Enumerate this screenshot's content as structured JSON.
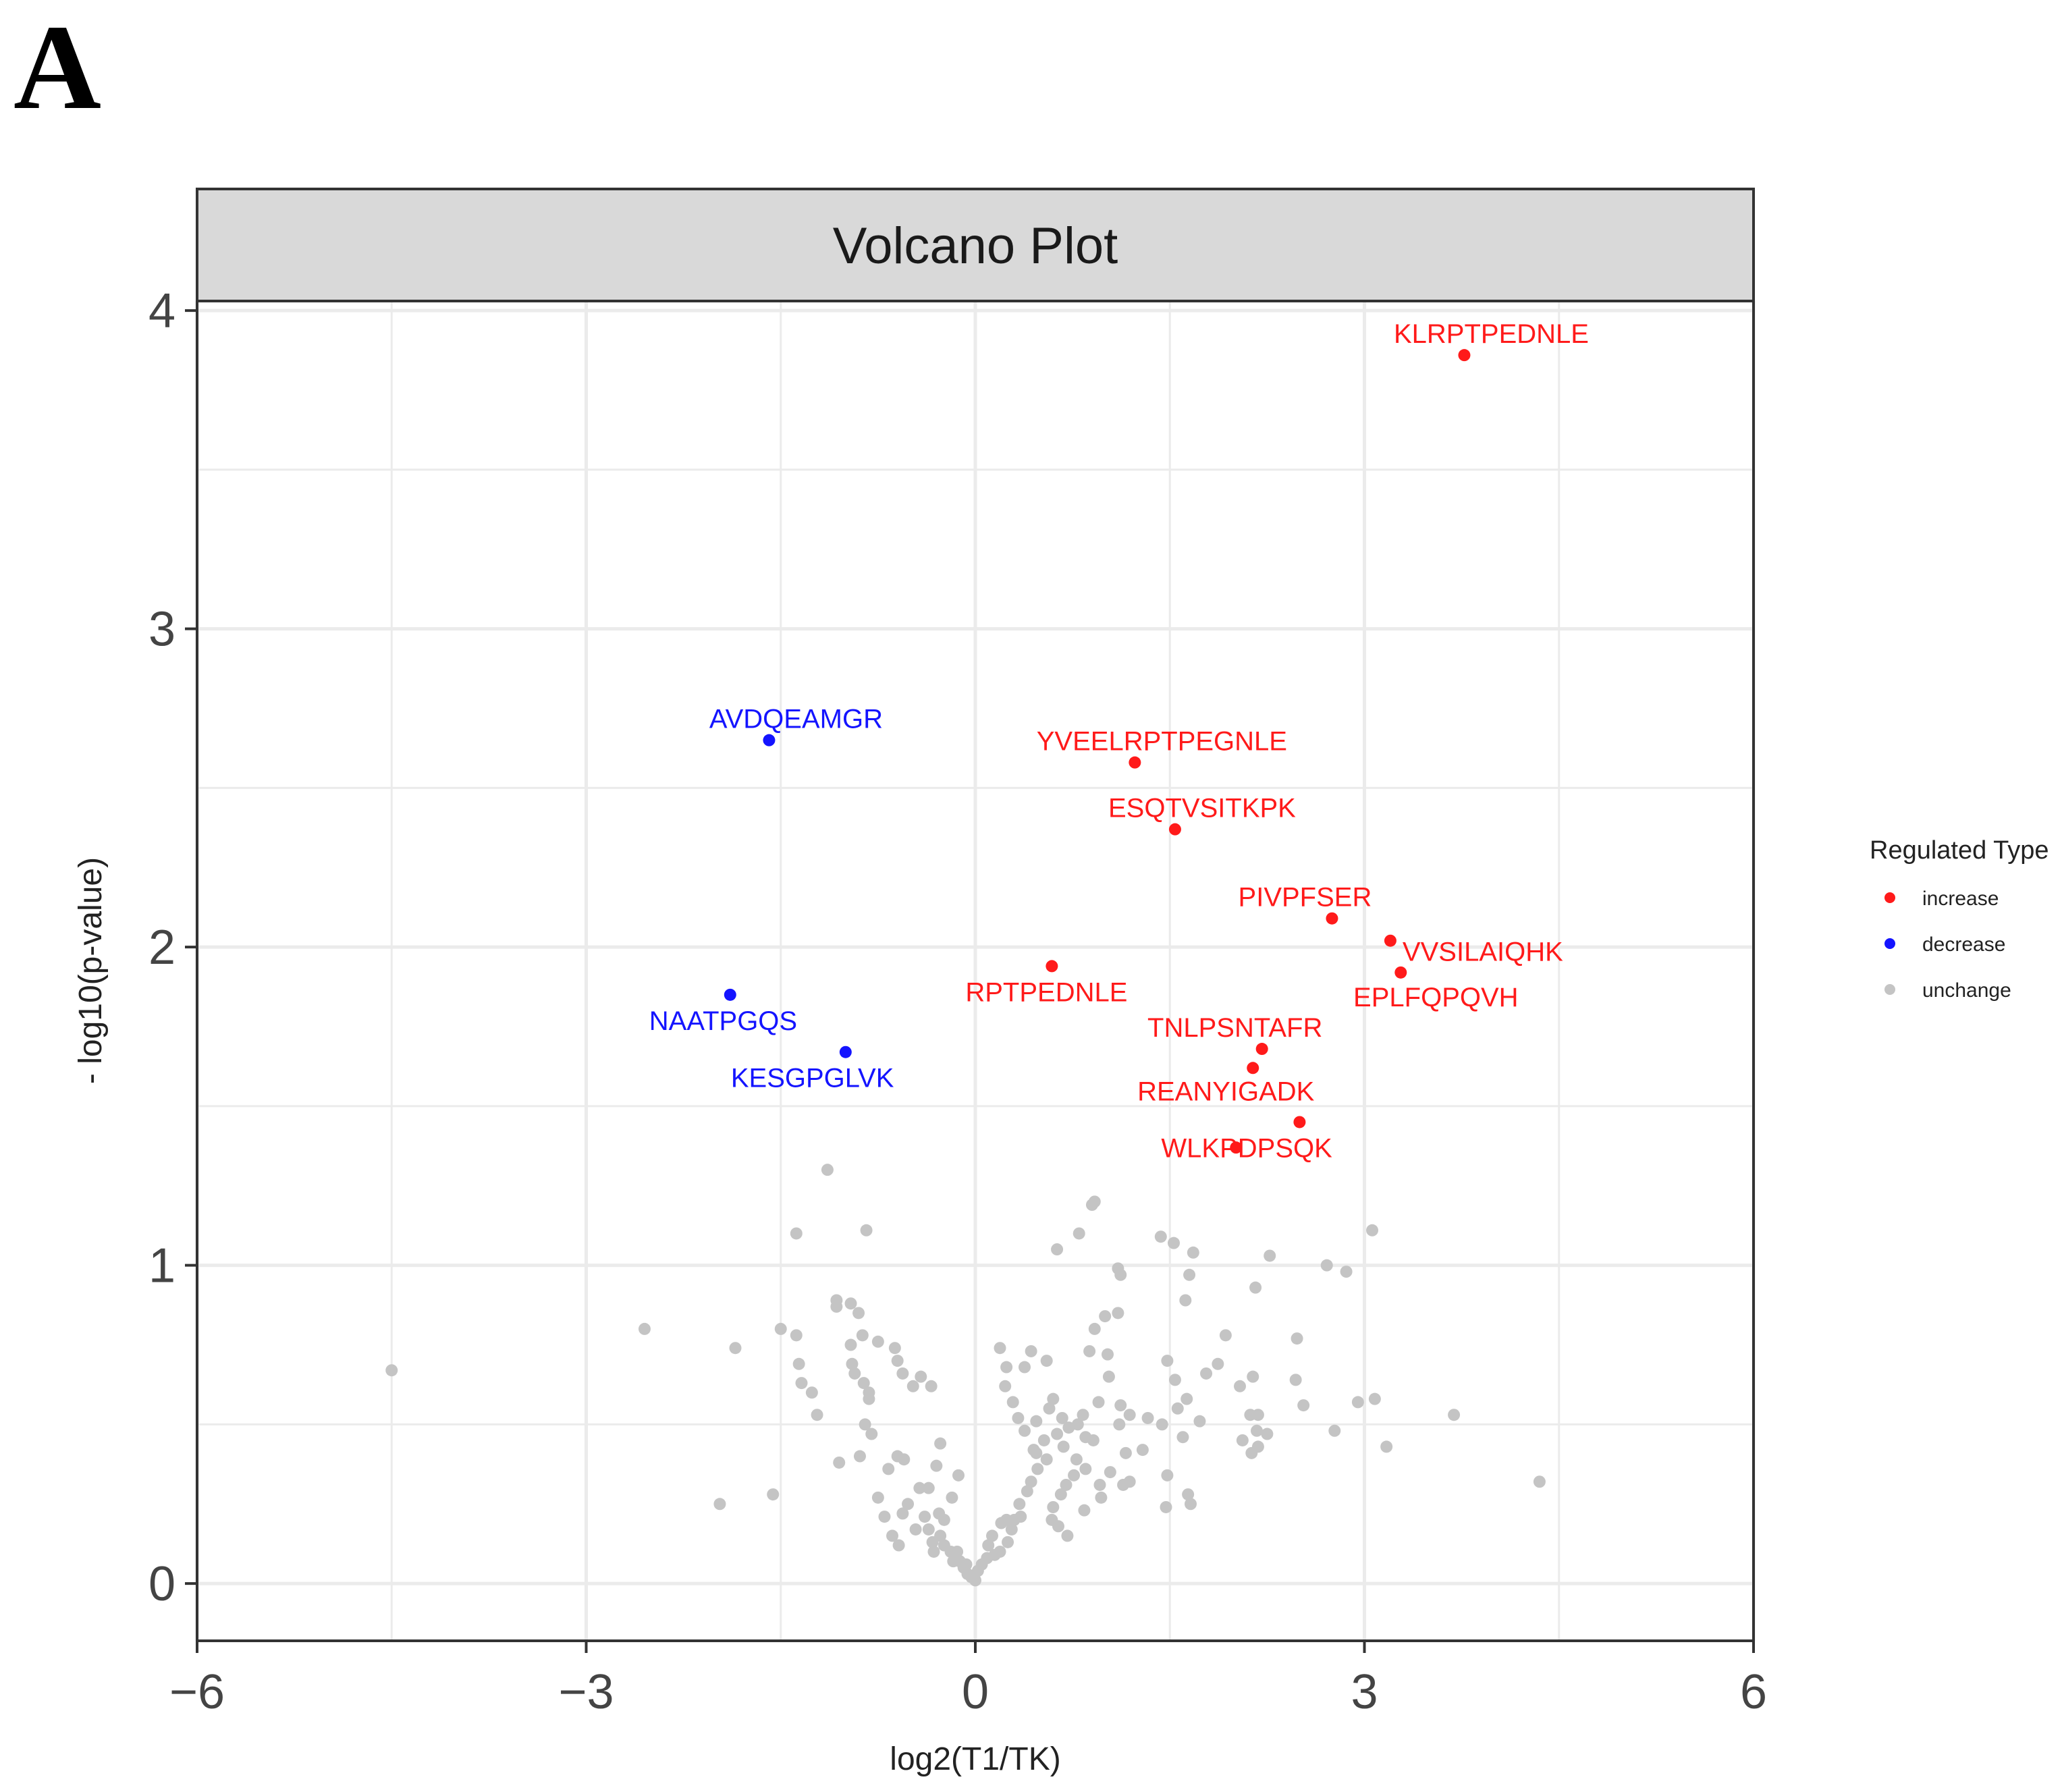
{
  "panel_label": "A",
  "colors": {
    "increase": "#ff1a1a",
    "decrease": "#1414ff",
    "unchange": "#c4c4c4",
    "strip_fill": "#d9d9d9",
    "grid": "#ebebeb",
    "axis": "#333333",
    "text": "#222222"
  },
  "legend": {
    "title": "Regulated Type",
    "items": [
      {
        "label": "increase",
        "color": "#ff1a1a"
      },
      {
        "label": "decrease",
        "color": "#1414ff"
      },
      {
        "label": "unchange",
        "color": "#c4c4c4"
      }
    ]
  },
  "chart_data": {
    "type": "scatter",
    "title": "Volcano Plot",
    "xlabel": "log2(T1/TK)",
    "ylabel": "- log10(p-value)",
    "xlim": [
      -6,
      6
    ],
    "ylim": [
      -0.18,
      4.03
    ],
    "x_ticks": [
      -6,
      -3,
      0,
      3,
      6
    ],
    "x_tick_labels": [
      "−6",
      "−3",
      "0",
      "3",
      "6"
    ],
    "y_ticks": [
      0,
      1,
      2,
      3,
      4
    ],
    "y_tick_labels": [
      "0",
      "1",
      "2",
      "3",
      "4"
    ],
    "grid": true,
    "legend_position": "right",
    "labeled_points": [
      {
        "label": "KLRPTPEDNLE",
        "x": 3.77,
        "y": 3.86,
        "type": "increase"
      },
      {
        "label": "YVEELRPTPEGNLE",
        "x": 1.23,
        "y": 2.58,
        "type": "increase"
      },
      {
        "label": "ESQTVSITKPK",
        "x": 1.54,
        "y": 2.37,
        "type": "increase"
      },
      {
        "label": "PIVPFSER",
        "x": 2.75,
        "y": 2.09,
        "type": "increase"
      },
      {
        "label": "VVSILAIQHK",
        "x": 3.2,
        "y": 2.02,
        "type": "increase"
      },
      {
        "label": "EPLFQPQVH",
        "x": 3.28,
        "y": 1.92,
        "type": "increase"
      },
      {
        "label": "RPTPEDNLE",
        "x": 0.59,
        "y": 1.94,
        "type": "increase"
      },
      {
        "label": "TNLPSNTAFR",
        "x": 2.21,
        "y": 1.68,
        "type": "increase"
      },
      {
        "label": "REANYIGADK",
        "x": 2.14,
        "y": 1.62,
        "type": "increase"
      },
      {
        "label": "WLKPDPSQK",
        "x": 2.5,
        "y": 1.45,
        "type": "increase"
      },
      {
        "label": "",
        "x": 2.01,
        "y": 1.37,
        "type": "increase"
      },
      {
        "label": "AVDQEAMGR",
        "x": -1.59,
        "y": 2.65,
        "type": "decrease"
      },
      {
        "label": "NAATPGQS",
        "x": -1.89,
        "y": 1.85,
        "type": "decrease"
      },
      {
        "label": "KESGPGLVK",
        "x": -1.0,
        "y": 1.67,
        "type": "decrease"
      }
    ],
    "unchange_points": [
      [
        -4.5,
        0.67
      ],
      [
        -2.55,
        0.8
      ],
      [
        -1.97,
        0.25
      ],
      [
        -1.85,
        0.74
      ],
      [
        -1.56,
        0.28
      ],
      [
        -1.14,
        1.3
      ],
      [
        -1.38,
        1.1
      ],
      [
        -0.84,
        1.11
      ],
      [
        -1.5,
        0.8
      ],
      [
        -1.38,
        0.78
      ],
      [
        -1.36,
        0.69
      ],
      [
        -1.34,
        0.63
      ],
      [
        -1.26,
        0.6
      ],
      [
        -1.22,
        0.53
      ],
      [
        -1.07,
        0.89
      ],
      [
        -1.07,
        0.87
      ],
      [
        -0.96,
        0.88
      ],
      [
        -0.9,
        0.85
      ],
      [
        -0.87,
        0.78
      ],
      [
        -0.96,
        0.75
      ],
      [
        -0.95,
        0.69
      ],
      [
        -0.93,
        0.66
      ],
      [
        -0.86,
        0.63
      ],
      [
        -0.82,
        0.6
      ],
      [
        -0.82,
        0.58
      ],
      [
        -0.75,
        0.76
      ],
      [
        -0.62,
        0.74
      ],
      [
        -0.6,
        0.7
      ],
      [
        -0.56,
        0.66
      ],
      [
        -0.48,
        0.62
      ],
      [
        -0.34,
        0.62
      ],
      [
        -0.42,
        0.65
      ],
      [
        -0.85,
        0.5
      ],
      [
        -0.8,
        0.47
      ],
      [
        -0.89,
        0.4
      ],
      [
        -1.05,
        0.38
      ],
      [
        -0.67,
        0.36
      ],
      [
        -0.6,
        0.4
      ],
      [
        -0.55,
        0.39
      ],
      [
        -0.27,
        0.44
      ],
      [
        -0.3,
        0.37
      ],
      [
        -0.43,
        0.3
      ],
      [
        -0.56,
        0.22
      ],
      [
        -0.52,
        0.25
      ],
      [
        -0.28,
        0.22
      ],
      [
        -0.24,
        0.2
      ],
      [
        -0.18,
        0.27
      ],
      [
        -0.13,
        0.34
      ],
      [
        -0.75,
        0.27
      ],
      [
        -0.7,
        0.21
      ],
      [
        -0.64,
        0.15
      ],
      [
        -0.59,
        0.12
      ],
      [
        -0.36,
        0.17
      ],
      [
        -0.33,
        0.13
      ],
      [
        -0.27,
        0.15
      ],
      [
        -0.24,
        0.12
      ],
      [
        -0.19,
        0.1
      ],
      [
        -0.14,
        0.1
      ],
      [
        -0.12,
        0.07
      ],
      [
        -0.07,
        0.06
      ],
      [
        -0.06,
        0.03
      ],
      [
        -0.03,
        0.02
      ],
      [
        -0.09,
        0.05
      ],
      [
        -0.17,
        0.07
      ],
      [
        -0.32,
        0.1
      ],
      [
        -0.46,
        0.17
      ],
      [
        -0.36,
        0.3
      ],
      [
        -0.39,
        0.21
      ],
      [
        0.0,
        0.01
      ],
      [
        0.02,
        0.04
      ],
      [
        0.05,
        0.06
      ],
      [
        0.09,
        0.08
      ],
      [
        0.15,
        0.09
      ],
      [
        0.1,
        0.12
      ],
      [
        0.13,
        0.15
      ],
      [
        0.19,
        0.1
      ],
      [
        0.25,
        0.13
      ],
      [
        0.28,
        0.17
      ],
      [
        0.2,
        0.19
      ],
      [
        0.24,
        0.2
      ],
      [
        0.3,
        0.2
      ],
      [
        0.35,
        0.21
      ],
      [
        0.34,
        0.25
      ],
      [
        0.4,
        0.29
      ],
      [
        0.43,
        0.32
      ],
      [
        0.48,
        0.36
      ],
      [
        0.55,
        0.39
      ],
      [
        0.45,
        0.42
      ],
      [
        0.53,
        0.45
      ],
      [
        0.47,
        0.51
      ],
      [
        0.57,
        0.55
      ],
      [
        0.6,
        0.58
      ],
      [
        0.63,
        0.47
      ],
      [
        0.67,
        0.52
      ],
      [
        0.72,
        0.49
      ],
      [
        0.79,
        0.5
      ],
      [
        0.83,
        0.53
      ],
      [
        0.68,
        0.43
      ],
      [
        0.78,
        0.39
      ],
      [
        0.85,
        0.36
      ],
      [
        0.76,
        0.34
      ],
      [
        0.7,
        0.31
      ],
      [
        0.66,
        0.28
      ],
      [
        0.6,
        0.24
      ],
      [
        0.59,
        0.2
      ],
      [
        0.64,
        0.18
      ],
      [
        0.71,
        0.15
      ],
      [
        0.84,
        0.23
      ],
      [
        0.96,
        0.31
      ],
      [
        0.97,
        0.27
      ],
      [
        1.04,
        0.35
      ],
      [
        1.14,
        0.31
      ],
      [
        1.19,
        0.32
      ],
      [
        1.16,
        0.41
      ],
      [
        1.11,
        0.5
      ],
      [
        1.12,
        0.56
      ],
      [
        1.19,
        0.53
      ],
      [
        1.33,
        0.52
      ],
      [
        1.44,
        0.5
      ],
      [
        1.29,
        0.42
      ],
      [
        0.91,
        0.45
      ],
      [
        0.85,
        0.46
      ],
      [
        0.95,
        0.57
      ],
      [
        1.03,
        0.65
      ],
      [
        1.02,
        0.72
      ],
      [
        0.88,
        0.73
      ],
      [
        0.92,
        0.8
      ],
      [
        1.0,
        0.84
      ],
      [
        1.1,
        0.85
      ],
      [
        1.12,
        0.97
      ],
      [
        1.1,
        0.99
      ],
      [
        0.92,
        1.2
      ],
      [
        0.9,
        1.19
      ],
      [
        0.8,
        1.1
      ],
      [
        0.63,
        1.05
      ],
      [
        0.55,
        0.7
      ],
      [
        0.43,
        0.73
      ],
      [
        0.38,
        0.68
      ],
      [
        0.24,
        0.68
      ],
      [
        0.23,
        0.62
      ],
      [
        0.29,
        0.57
      ],
      [
        0.33,
        0.52
      ],
      [
        0.38,
        0.48
      ],
      [
        0.47,
        0.41
      ],
      [
        0.19,
        0.74
      ],
      [
        1.43,
        1.09
      ],
      [
        1.53,
        1.07
      ],
      [
        1.68,
        1.04
      ],
      [
        1.65,
        0.97
      ],
      [
        1.62,
        0.89
      ],
      [
        1.48,
        0.7
      ],
      [
        1.54,
        0.64
      ],
      [
        1.56,
        0.55
      ],
      [
        1.63,
        0.58
      ],
      [
        1.6,
        0.46
      ],
      [
        1.48,
        0.34
      ],
      [
        1.64,
        0.28
      ],
      [
        1.66,
        0.25
      ],
      [
        1.47,
        0.24
      ],
      [
        1.78,
        0.66
      ],
      [
        1.87,
        0.69
      ],
      [
        1.93,
        0.78
      ],
      [
        2.12,
        0.53
      ],
      [
        2.18,
        0.53
      ],
      [
        2.04,
        0.62
      ],
      [
        2.14,
        0.65
      ],
      [
        2.17,
        0.48
      ],
      [
        2.06,
        0.45
      ],
      [
        2.13,
        0.41
      ],
      [
        2.18,
        0.43
      ],
      [
        2.25,
        0.47
      ],
      [
        2.27,
        1.03
      ],
      [
        2.16,
        0.93
      ],
      [
        1.73,
        0.51
      ],
      [
        2.48,
        0.77
      ],
      [
        2.47,
        0.64
      ],
      [
        2.53,
        0.56
      ],
      [
        2.71,
        1.0
      ],
      [
        2.86,
        0.98
      ],
      [
        2.77,
        0.48
      ],
      [
        2.95,
        0.57
      ],
      [
        3.08,
        0.58
      ],
      [
        3.06,
        1.11
      ],
      [
        3.17,
        0.43
      ],
      [
        3.69,
        0.53
      ],
      [
        4.35,
        0.32
      ]
    ]
  }
}
